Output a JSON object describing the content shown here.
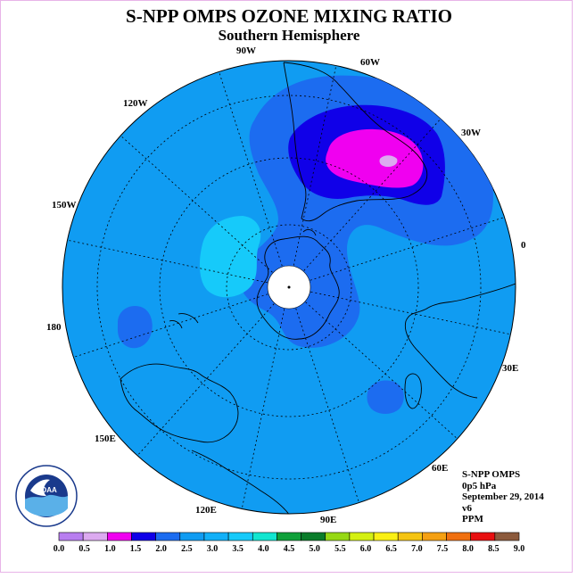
{
  "title": "S-NPP OMPS OZONE MIXING RATIO",
  "subtitle": "Southern Hemisphere",
  "map": {
    "projection": "south-polar-stereographic",
    "longitude_labels": [
      {
        "key": "90W",
        "text": "90W"
      },
      {
        "key": "60W",
        "text": "60W"
      },
      {
        "key": "30W",
        "text": "30W"
      },
      {
        "key": "0",
        "text": "0"
      },
      {
        "key": "30E",
        "text": "30E"
      },
      {
        "key": "60E",
        "text": "60E"
      },
      {
        "key": "90E",
        "text": "90E"
      },
      {
        "key": "120E",
        "text": "120E"
      },
      {
        "key": "150E",
        "text": "150E"
      },
      {
        "key": "180",
        "text": "180"
      },
      {
        "key": "150W",
        "text": "150W"
      },
      {
        "key": "120W",
        "text": "120W"
      }
    ],
    "background_level_color": "#109cf2"
  },
  "info": {
    "instrument": "S-NPP OMPS",
    "pressure": "0p5 hPa",
    "date": "September 29, 2014",
    "version": "v6",
    "units": "PPM"
  },
  "logo": {
    "text": "NOAA"
  },
  "colorbar": {
    "labels": [
      "0.0",
      "0.5",
      "1.0",
      "1.5",
      "2.0",
      "2.5",
      "3.0",
      "3.5",
      "4.0",
      "4.5",
      "5.0",
      "5.5",
      "6.0",
      "6.5",
      "7.0",
      "7.5",
      "8.0",
      "8.5",
      "9.0"
    ],
    "colors": [
      "#b87ef0",
      "#dcaaf0",
      "#f000f0",
      "#1000e8",
      "#1c6cf0",
      "#109cf2",
      "#12b0f8",
      "#16cafa",
      "#12e6d0",
      "#10a03a",
      "#0a7c2a",
      "#96d814",
      "#d4f012",
      "#faf014",
      "#f5c412",
      "#f5a012",
      "#f07010",
      "#e81010",
      "#8c5a3c"
    ]
  }
}
